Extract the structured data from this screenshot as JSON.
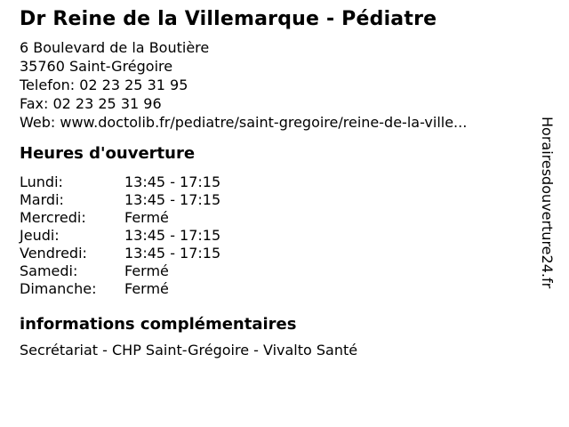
{
  "header": {
    "title": "Dr Reine de la Villemarque - Pédiatre"
  },
  "contact": {
    "address_line1": "6 Boulevard de la Boutière",
    "address_line2": "35760 Saint-Grégoire",
    "phone_line": "Telefon: 02 23 25 31 95",
    "fax_line": "Fax: 02 23 25 31 96",
    "web_line": "Web: www.doctolib.fr/pediatre/saint-gregoire/reine-de-la-ville..."
  },
  "hours": {
    "heading": "Heures d'ouverture",
    "rows": [
      {
        "day": "Lundi:",
        "value": "13:45 - 17:15"
      },
      {
        "day": "Mardi:",
        "value": "13:45 - 17:15"
      },
      {
        "day": "Mercredi:",
        "value": "Fermé"
      },
      {
        "day": "Jeudi:",
        "value": "13:45 - 17:15"
      },
      {
        "day": "Vendredi:",
        "value": "13:45 - 17:15"
      },
      {
        "day": "Samedi:",
        "value": "Fermé"
      },
      {
        "day": "Dimanche:",
        "value": "Fermé"
      }
    ]
  },
  "info": {
    "heading": "informations complémentaires",
    "text": "Secrétariat - CHP Saint-Grégoire - Vivalto Santé"
  },
  "watermark": {
    "text": "Horairesdouverture24.fr"
  },
  "colors": {
    "text": "#000000",
    "background": "#ffffff"
  }
}
